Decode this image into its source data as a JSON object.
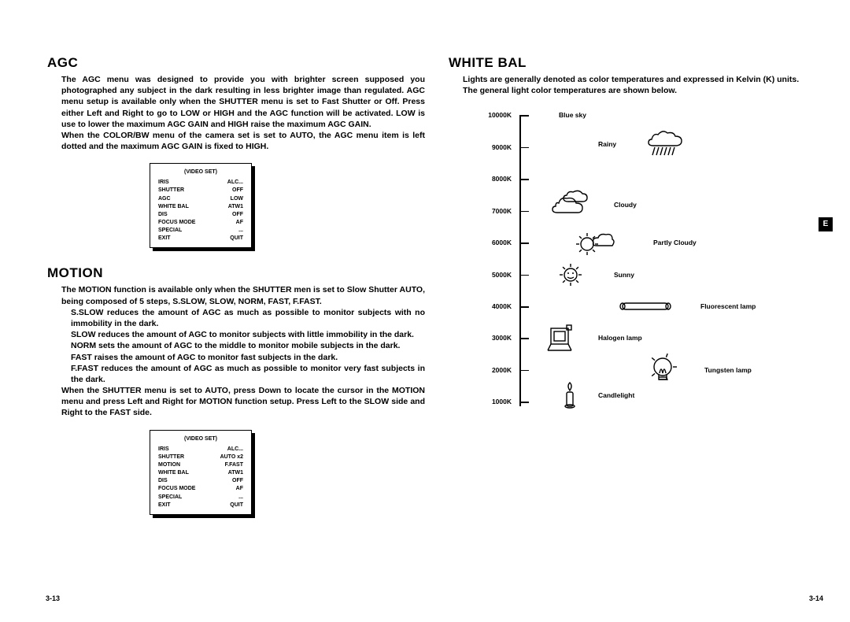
{
  "left_page": {
    "agc": {
      "title": "AGC",
      "paragraph1": "The AGC menu was designed to provide you with brighter screen supposed you photographed any subject in the dark resulting in less brighter image than regulated. AGC menu setup is available only when the SHUTTER menu is set to Fast Shutter or Off. Press either Left and Right to go to LOW or HIGH and the AGC function will be activated. LOW is use to lower the maximum AGC GAIN and HIGH raise the maximum AGC GAIN.",
      "paragraph2": "When the COLOR/BW menu of the camera set is set to AUTO, the AGC menu item is left dotted and the maximum AGC GAIN is fixed to HIGH."
    },
    "motion": {
      "title": "MOTION",
      "intro": "The MOTION function is available only when the SHUTTER men is set to Slow Shutter AUTO, being composed of 5 steps, S.SLOW, SLOW, NORM, FAST, F.FAST.",
      "lines": [
        "S.SLOW reduces the amount of AGC as much as possible to monitor subjects with no immobility in the dark.",
        "SLOW reduces the amount of AGC to monitor subjects with little immobility in the dark.",
        "NORM sets the amount of AGC to the middle to monitor mobile subjects in the dark.",
        "FAST raises the amount of AGC to monitor fast subjects in the dark.",
        "F.FAST reduces the amount of AGC as much as possible to monitor very fast subjects in the dark."
      ],
      "outro": "When the SHUTTER menu is set to AUTO, press Down to locate the cursor in the MOTION menu and press Left and Right for MOTION function setup. Press Left to the SLOW side and Right to the FAST side."
    },
    "menu1": {
      "title": "(VIDEO SET)",
      "rows": [
        [
          "IRIS",
          "ALC..."
        ],
        [
          "SHUTTER",
          "OFF"
        ],
        [
          "AGC",
          "LOW"
        ],
        [
          "WHITE BAL",
          "ATW1"
        ],
        [
          "DIS",
          "OFF"
        ],
        [
          "FOCUS MODE",
          "AF"
        ],
        [
          "SPECIAL",
          "..."
        ],
        [
          "EXIT",
          "QUIT"
        ]
      ]
    },
    "menu2": {
      "title": "(VIDEO SET)",
      "rows": [
        [
          "IRIS",
          "ALC..."
        ],
        [
          "SHUTTER",
          "AUTO x2"
        ],
        [
          "MOTION",
          "F.FAST"
        ],
        [
          "WHITE BAL",
          "ATW1"
        ],
        [
          "DIS",
          "OFF"
        ],
        [
          "FOCUS MODE",
          "AF"
        ],
        [
          "SPECIAL",
          "..."
        ],
        [
          "EXIT",
          "QUIT"
        ]
      ]
    },
    "page_number": "3-13"
  },
  "right_page": {
    "whitebal": {
      "title": "WHITE BAL",
      "paragraph1": "Lights are generally denoted as color temperatures and expressed in Kelvin (K) units.",
      "paragraph2": "The general light color temperatures are shown below."
    },
    "kelvin": {
      "ticks": [
        "10000K",
        "9000K",
        "8000K",
        "7000K",
        "6000K",
        "5000K",
        "4000K",
        "3000K",
        "2000K",
        "1000K"
      ],
      "items": [
        {
          "k": 10000,
          "label": "Blue sky",
          "icon": ""
        },
        {
          "k": 9100,
          "label": "Rainy",
          "icon": "rain"
        },
        {
          "k": 7200,
          "label": "Cloudy",
          "icon": "cloud"
        },
        {
          "k": 6000,
          "label": "Partly Cloudy",
          "icon": "partly"
        },
        {
          "k": 5000,
          "label": "Sunny",
          "icon": "sun"
        },
        {
          "k": 4000,
          "label": "Fluorescent lamp",
          "icon": "tube"
        },
        {
          "k": 3000,
          "label": "Halogen lamp",
          "icon": "halogen"
        },
        {
          "k": 2000,
          "label": "Tungsten lamp",
          "icon": "bulb"
        },
        {
          "k": 1200,
          "label": "Candlelight",
          "icon": "candle"
        }
      ]
    },
    "page_number": "3-14",
    "tab": "E"
  },
  "styling": {
    "title_fontsize": 17,
    "body_fontsize": 10.5,
    "menu_fontsize": 7,
    "kelvin_label_fontsize": 8.5,
    "text_color": "#000000",
    "background_color": "#ffffff",
    "chart_axis_color": "#000000"
  }
}
